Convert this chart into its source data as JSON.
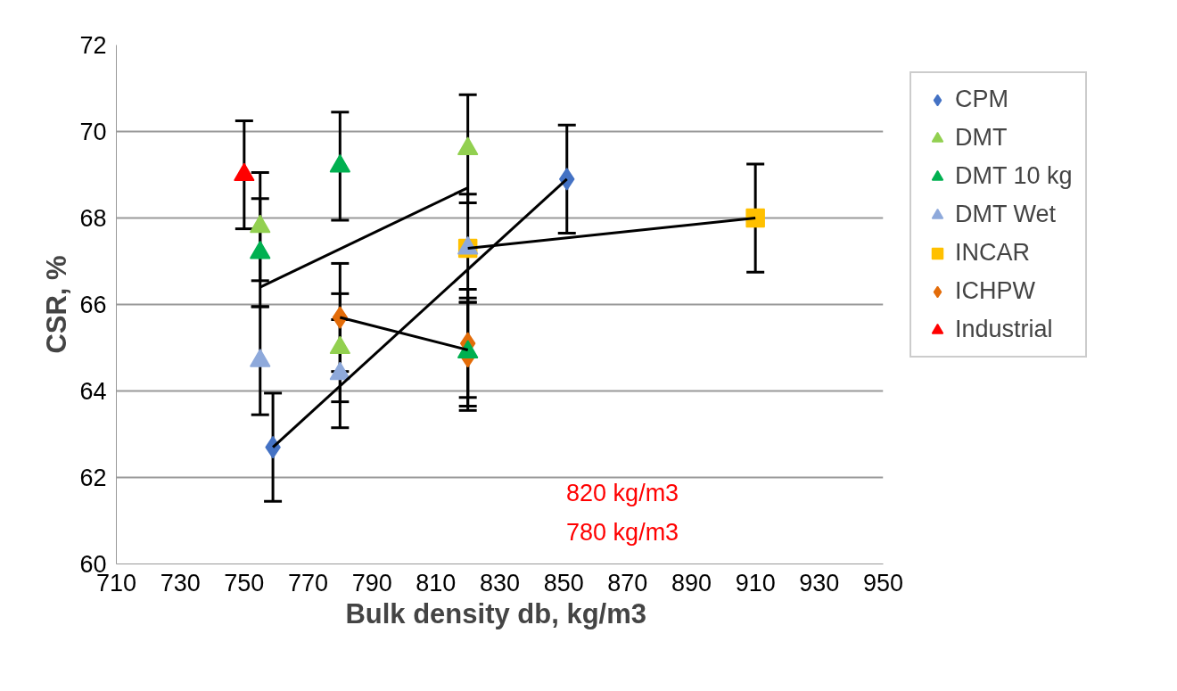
{
  "chart_data": {
    "type": "scatter",
    "xlabel": "Bulk density  db, kg/m3",
    "ylabel": "CSR, %",
    "xlim": [
      710,
      950
    ],
    "xticks": [
      710,
      730,
      750,
      770,
      790,
      810,
      830,
      850,
      870,
      890,
      910,
      930,
      950
    ],
    "ylim": [
      60,
      72
    ],
    "yticks": [
      60,
      62,
      64,
      66,
      68,
      70,
      72
    ],
    "grid": "y",
    "legend": "right",
    "series": [
      {
        "type": "line",
        "color": "#000000",
        "marker": "none",
        "x": [
          755,
          820
        ],
        "values": [
          66.4,
          68.7
        ]
      },
      {
        "type": "line",
        "color": "#000000",
        "marker": "none",
        "x": [
          759,
          851
        ],
        "values": [
          62.7,
          68.9
        ]
      },
      {
        "type": "line",
        "color": "#000000",
        "marker": "none",
        "x": [
          780,
          820
        ],
        "values": [
          65.7,
          64.95
        ]
      },
      {
        "type": "line",
        "color": "#000000",
        "marker": "none",
        "x": [
          820,
          910
        ],
        "values": [
          67.3,
          68.0
        ]
      },
      {
        "name": "CPM",
        "color": "#4472c4",
        "marker": "diamond",
        "x": [
          759,
          851
        ],
        "values": [
          62.7,
          68.9
        ],
        "errors": [
          1.25,
          1.25
        ]
      },
      {
        "name": "DMT",
        "color": "#92d050",
        "marker": "triangle",
        "x": [
          755,
          780,
          820
        ],
        "values": [
          67.8,
          65.0,
          69.6
        ],
        "errors": [
          1.25,
          1.25,
          1.25
        ]
      },
      {
        "name": "DMT 10 kg",
        "color": "#00b050",
        "marker": "triangle",
        "x": [
          755,
          780,
          820
        ],
        "values": [
          67.2,
          69.2,
          64.9
        ],
        "errors": [
          1.25,
          1.25,
          1.25
        ]
      },
      {
        "name": "DMT Wet",
        "color": "#8ea9db",
        "marker": "triangle",
        "x": [
          755,
          780,
          820
        ],
        "values": [
          64.7,
          64.4,
          67.3
        ],
        "errors": [
          1.25,
          1.25,
          1.25
        ]
      },
      {
        "name": "INCAR",
        "color": "#ffc000",
        "marker": "square",
        "x": [
          820,
          910
        ],
        "values": [
          67.3,
          68.0
        ],
        "errors": [
          null,
          1.25
        ]
      },
      {
        "name": "ICHPW",
        "color": "#e36c09",
        "marker": "diamond",
        "x": [
          780,
          820
        ],
        "values": [
          65.7,
          65.1
        ],
        "errors": [
          1.25,
          1.25
        ]
      },
      {
        "color": "#e36c09",
        "marker": "diamond",
        "x": [
          820
        ],
        "values": [
          64.8
        ],
        "errors": [
          1.25
        ]
      },
      {
        "name": "Industrial",
        "color": "#ff0000",
        "marker": "triangle",
        "x": [
          750
        ],
        "values": [
          69.0
        ],
        "errors": [
          1.25
        ]
      }
    ],
    "annotations": [
      "820 kg/m3",
      "780 kg/m3"
    ]
  }
}
